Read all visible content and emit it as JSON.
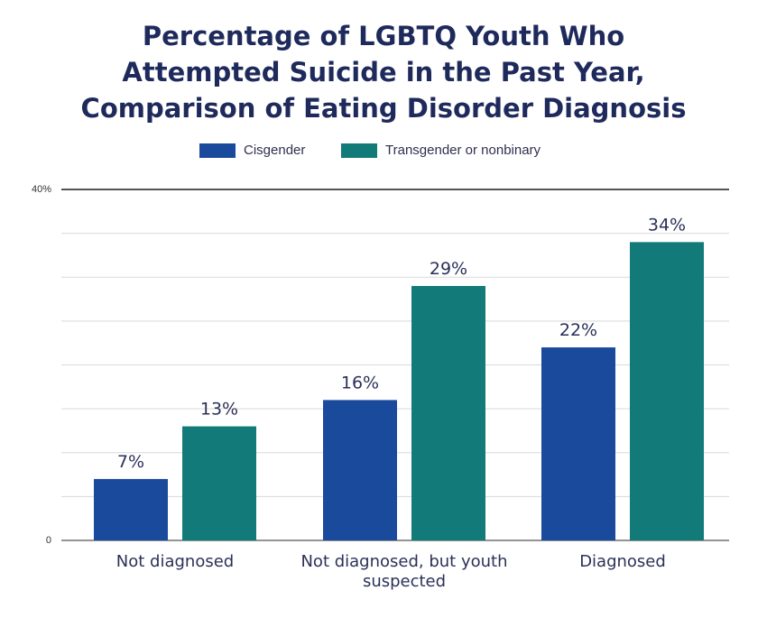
{
  "chart_data": {
    "type": "bar",
    "title_lines": [
      "Percentage of LGBTQ Youth Who",
      "Attempted Suicide in the Past Year,",
      "Comparison of Eating Disorder Diagnosis"
    ],
    "categories": [
      [
        "Not diagnosed"
      ],
      [
        "Not diagnosed, but youth",
        "suspected"
      ],
      [
        "Diagnosed"
      ]
    ],
    "series": [
      {
        "name": "Cisgender",
        "color": "#1a4a9c",
        "values": [
          7,
          16,
          22
        ],
        "labels": [
          "7%",
          "16%",
          "22%"
        ]
      },
      {
        "name": "Transgender or nonbinary",
        "color": "#127a78",
        "values": [
          13,
          29,
          34
        ],
        "labels": [
          "13%",
          "29%",
          "34%"
        ]
      }
    ],
    "ylim": [
      0,
      40
    ],
    "y_tick_labels": {
      "0": "0",
      "40": "40%"
    },
    "gridlines": [
      5,
      10,
      15,
      20,
      25,
      30,
      35
    ],
    "legend_position": "top-center"
  }
}
